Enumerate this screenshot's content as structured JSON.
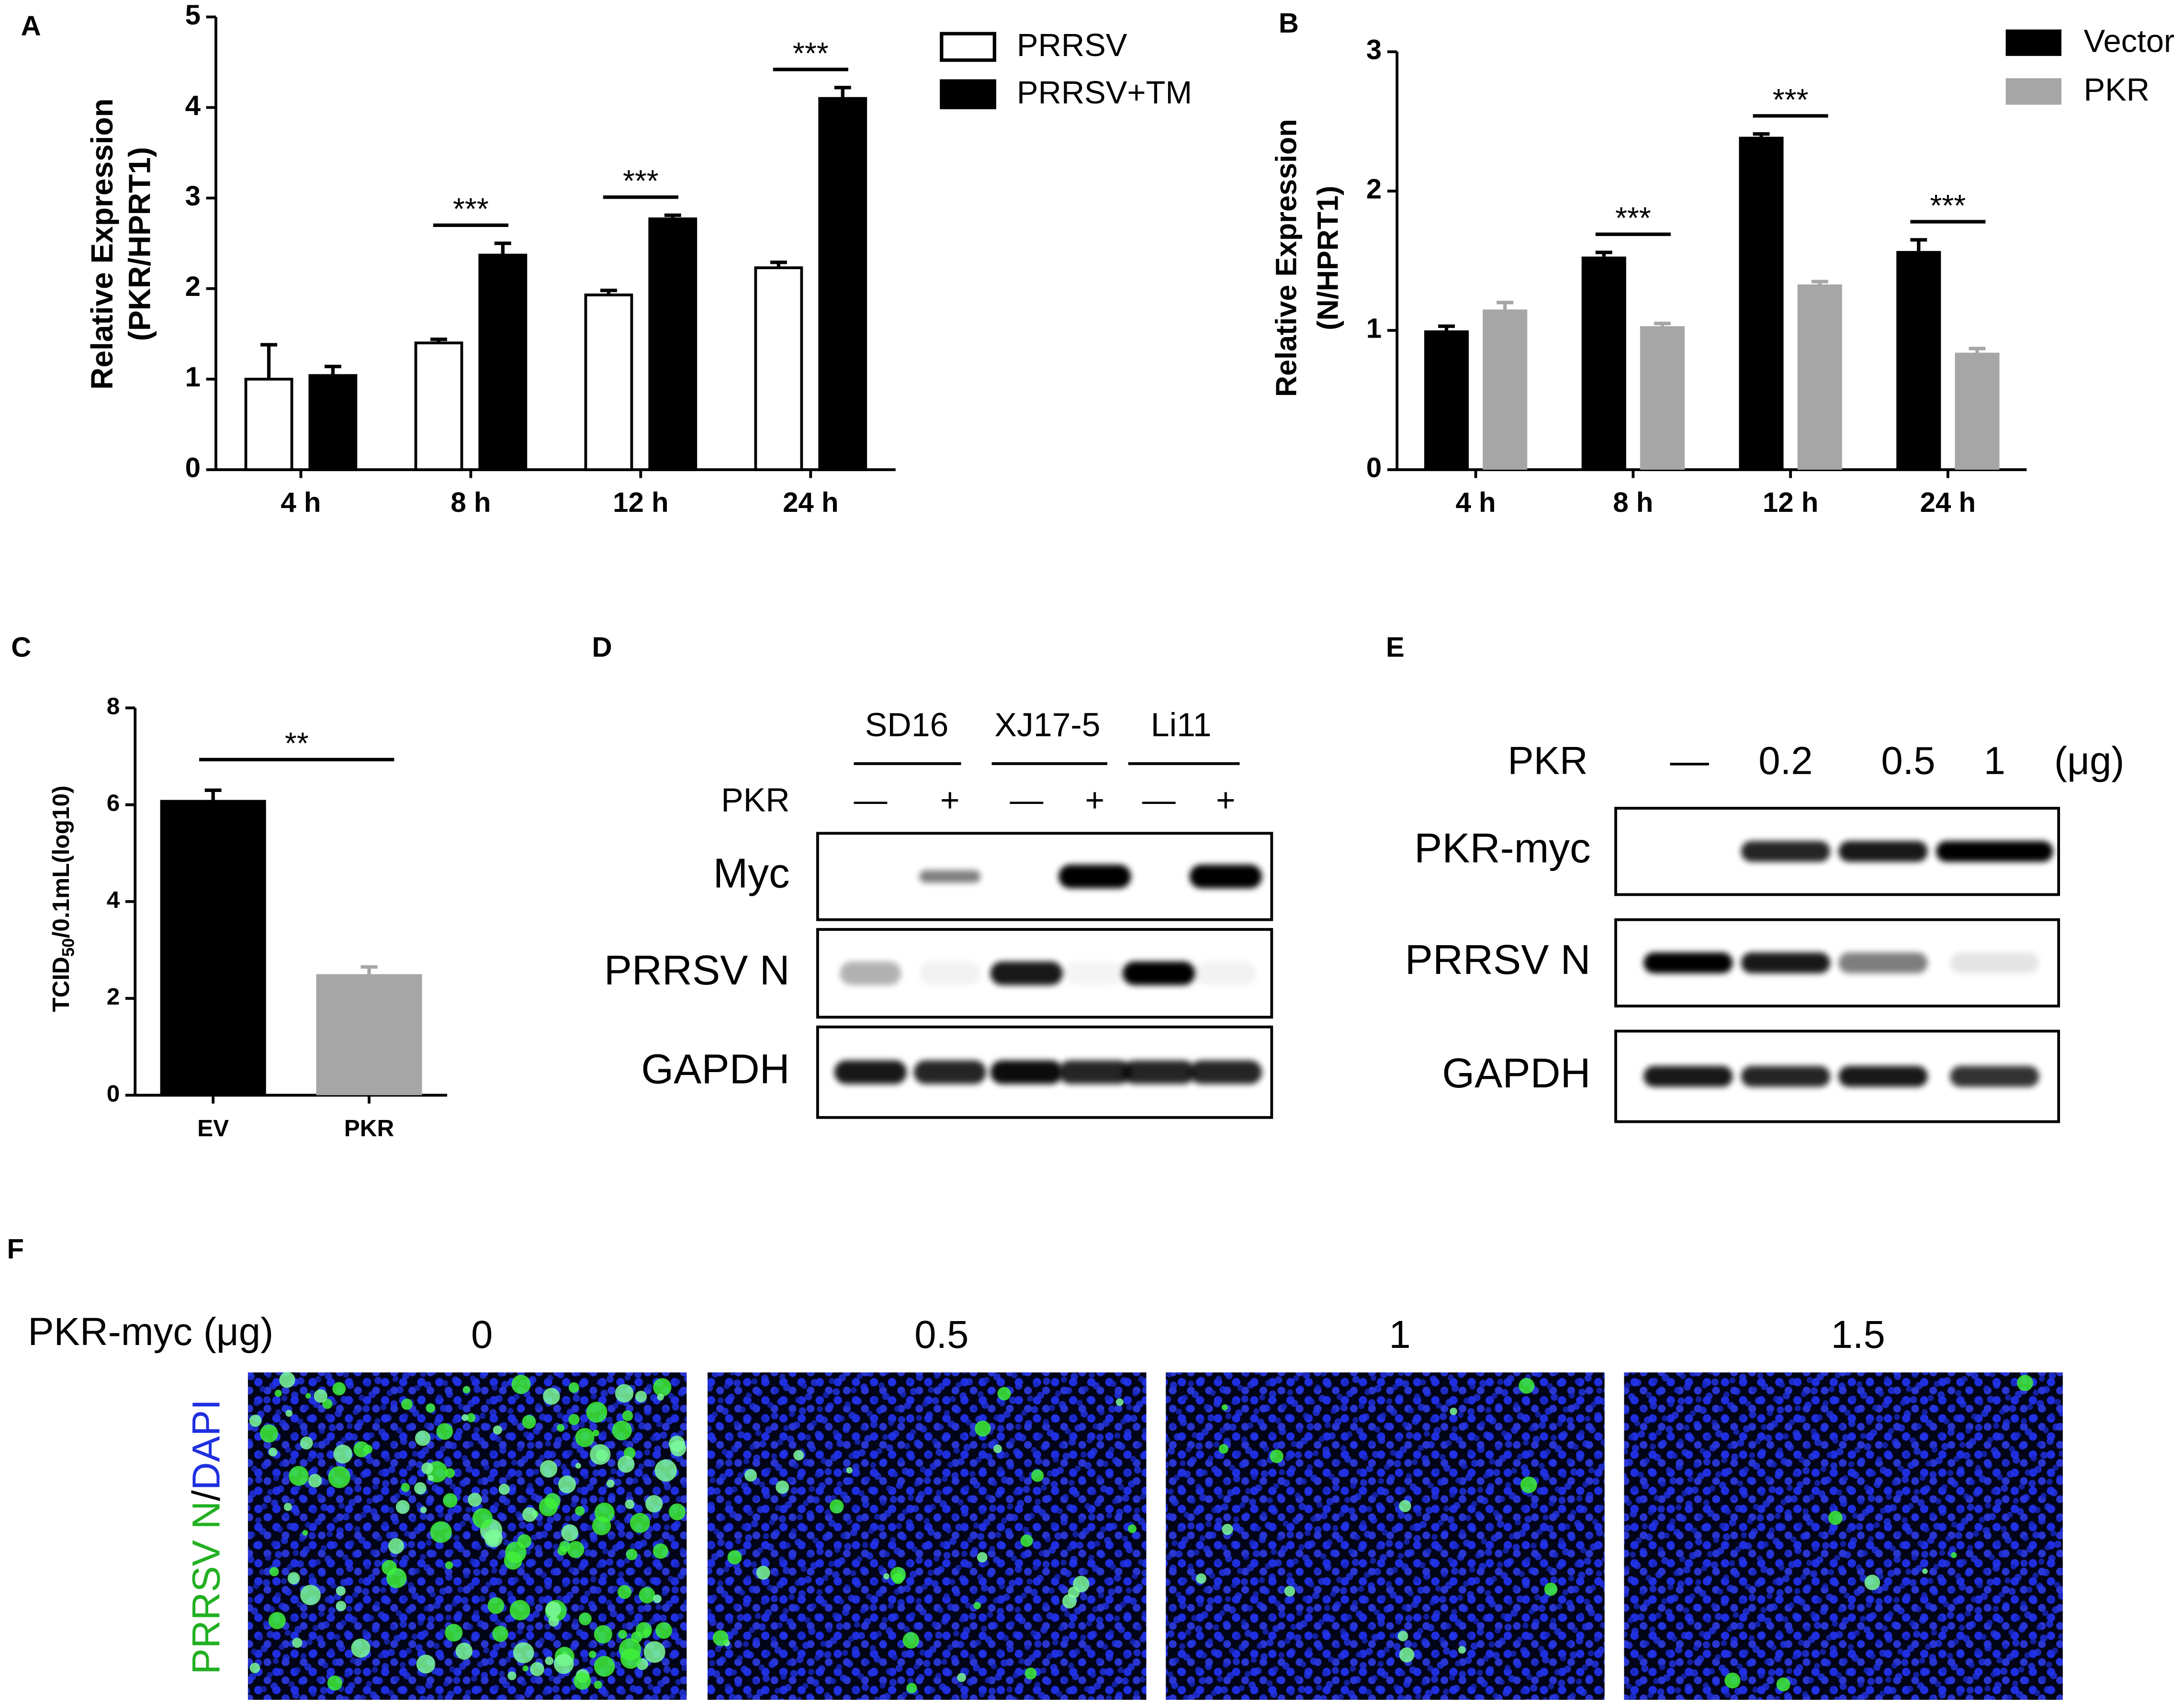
{
  "chart_data": [
    {
      "type": "bar",
      "panel": "A",
      "ylabel": [
        "Relative Expression",
        "(PKR/HPRT1)"
      ],
      "categories": [
        "4 h",
        "8 h",
        "12 h",
        "24 h"
      ],
      "series": [
        {
          "name": "PRRSV",
          "color": "#ffffff",
          "edgecolor": "#000000",
          "values": [
            1.0,
            1.4,
            1.93,
            2.23
          ],
          "errors": [
            0.38,
            0.04,
            0.05,
            0.06
          ]
        },
        {
          "name": "PRRSV+TM",
          "color": "#000000",
          "edgecolor": "#000000",
          "values": [
            1.04,
            2.37,
            2.77,
            4.1
          ],
          "errors": [
            0.1,
            0.13,
            0.04,
            0.12
          ]
        }
      ],
      "ylim": [
        0,
        5
      ],
      "yticks": [
        0,
        1,
        2,
        3,
        4,
        5
      ],
      "annotations": [
        {
          "text": "***",
          "categories": [
            "8 h"
          ]
        },
        {
          "text": "***",
          "categories": [
            "12 h"
          ]
        },
        {
          "text": "***",
          "categories": [
            "24 h"
          ]
        }
      ]
    },
    {
      "type": "bar",
      "panel": "B",
      "ylabel": [
        "Relative Expression",
        "(N/HPRT1)"
      ],
      "categories": [
        "4 h",
        "8 h",
        "12 h",
        "24 h"
      ],
      "series": [
        {
          "name": "Vector",
          "color": "#000000",
          "values": [
            1.0,
            1.53,
            2.39,
            1.57
          ],
          "errors": [
            0.03,
            0.03,
            0.02,
            0.08
          ]
        },
        {
          "name": "PKR",
          "color": "#a6a6a6",
          "values": [
            1.15,
            1.03,
            1.33,
            0.84
          ],
          "errors": [
            0.05,
            0.02,
            0.02,
            0.03
          ]
        }
      ],
      "ylim": [
        0,
        3
      ],
      "yticks": [
        0,
        1,
        2,
        3
      ],
      "annotations": [
        {
          "text": "***",
          "categories": [
            "8 h"
          ]
        },
        {
          "text": "***",
          "categories": [
            "12 h"
          ]
        },
        {
          "text": "***",
          "categories": [
            "24 h"
          ]
        }
      ]
    },
    {
      "type": "bar",
      "panel": "C",
      "ylabel": [
        "TCID",
        "50",
        "/0.1mL(log10)"
      ],
      "categories": [
        "EV",
        "PKR"
      ],
      "values": [
        6.1,
        2.5
      ],
      "errors": [
        0.2,
        0.15
      ],
      "colors": [
        "#000000",
        "#a6a6a6"
      ],
      "ylim": [
        0,
        8
      ],
      "yticks": [
        0,
        2,
        4,
        6,
        8
      ],
      "annotations": [
        {
          "text": "**",
          "categories": [
            "EV",
            "PKR"
          ]
        }
      ]
    }
  ],
  "blot_d": {
    "panel": "D",
    "groups": [
      "SD16",
      "XJ17-5",
      "Li11"
    ],
    "treatment": "PKR",
    "lanes": [
      "—",
      "+",
      "—",
      "+",
      "—",
      "+"
    ],
    "rows": [
      "Myc",
      "PRRSV N",
      "GAPDH"
    ]
  },
  "blot_e": {
    "panel": "E",
    "treatment": "PKR",
    "lanes": [
      "—",
      "0.2",
      "0.5",
      "1"
    ],
    "unit": "(μg)",
    "rows": [
      "PKR-myc",
      "PRRSV N",
      "GAPDH"
    ]
  },
  "micrographs": {
    "panel": "F",
    "label": "PKR-myc (μg)",
    "doses": [
      "0",
      "0.5",
      "1",
      "1.5"
    ],
    "stain": [
      "PRRSV N",
      "/",
      "DAPI"
    ]
  }
}
